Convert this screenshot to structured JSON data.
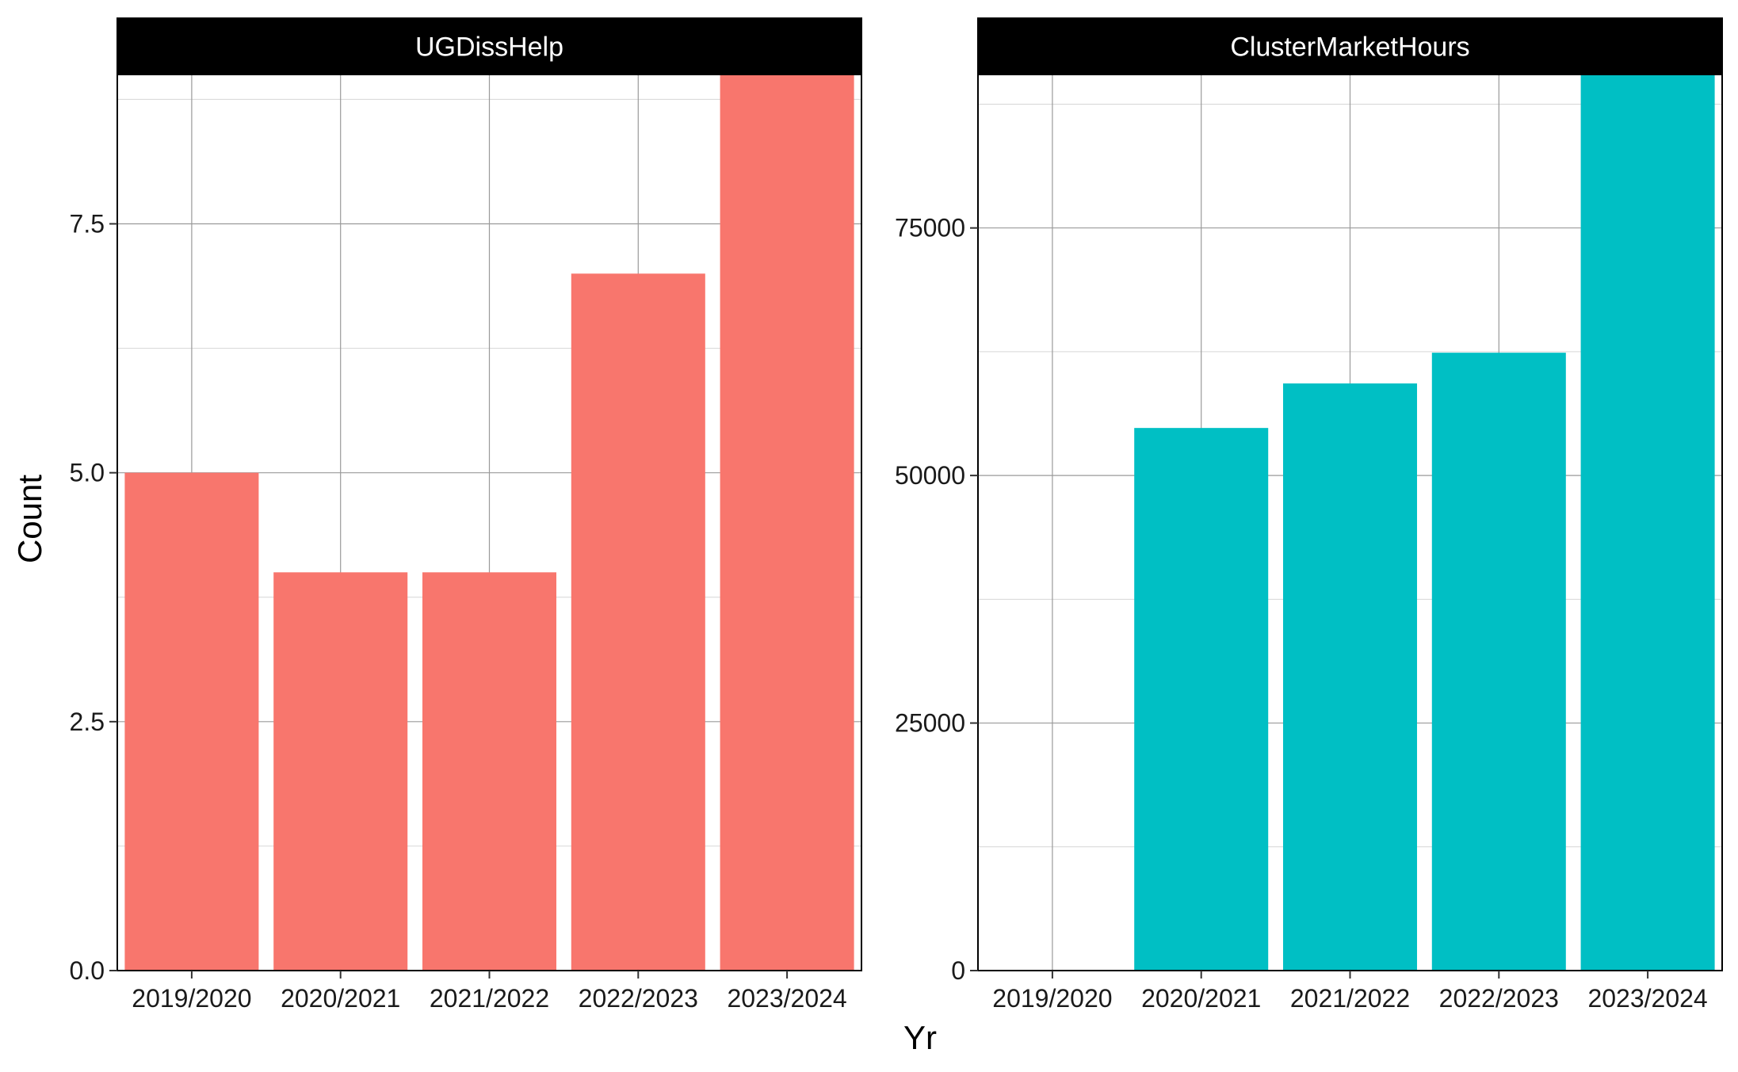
{
  "chart_data": {
    "type": "bar",
    "xlabel": "Yr",
    "ylabel": "Count",
    "categories": [
      "2019/2020",
      "2020/2021",
      "2021/2022",
      "2022/2023",
      "2023/2024"
    ],
    "facets": [
      {
        "strip": "UGDissHelp",
        "color": "#F8766D",
        "values": [
          5,
          4,
          4,
          7,
          9
        ],
        "ylim": [
          0,
          9
        ],
        "yticks": [
          0,
          2.5,
          5,
          7.5
        ],
        "ytick_labels": [
          "0.0",
          "2.5",
          "5.0",
          "7.5"
        ],
        "yminor": [
          1.25,
          3.75,
          6.25,
          8.75
        ]
      },
      {
        "strip": "ClusterMarketHours",
        "color": "#00BFC4",
        "values": [
          0,
          54800,
          59300,
          62400,
          90500
        ],
        "ylim": [
          0,
          90500
        ],
        "yticks": [
          0,
          25000,
          50000,
          75000
        ],
        "ytick_labels": [
          "0",
          "25000",
          "50000",
          "75000"
        ],
        "yminor": [
          12500,
          37500,
          62500,
          87500
        ]
      }
    ],
    "grid": true,
    "legend": "none"
  }
}
